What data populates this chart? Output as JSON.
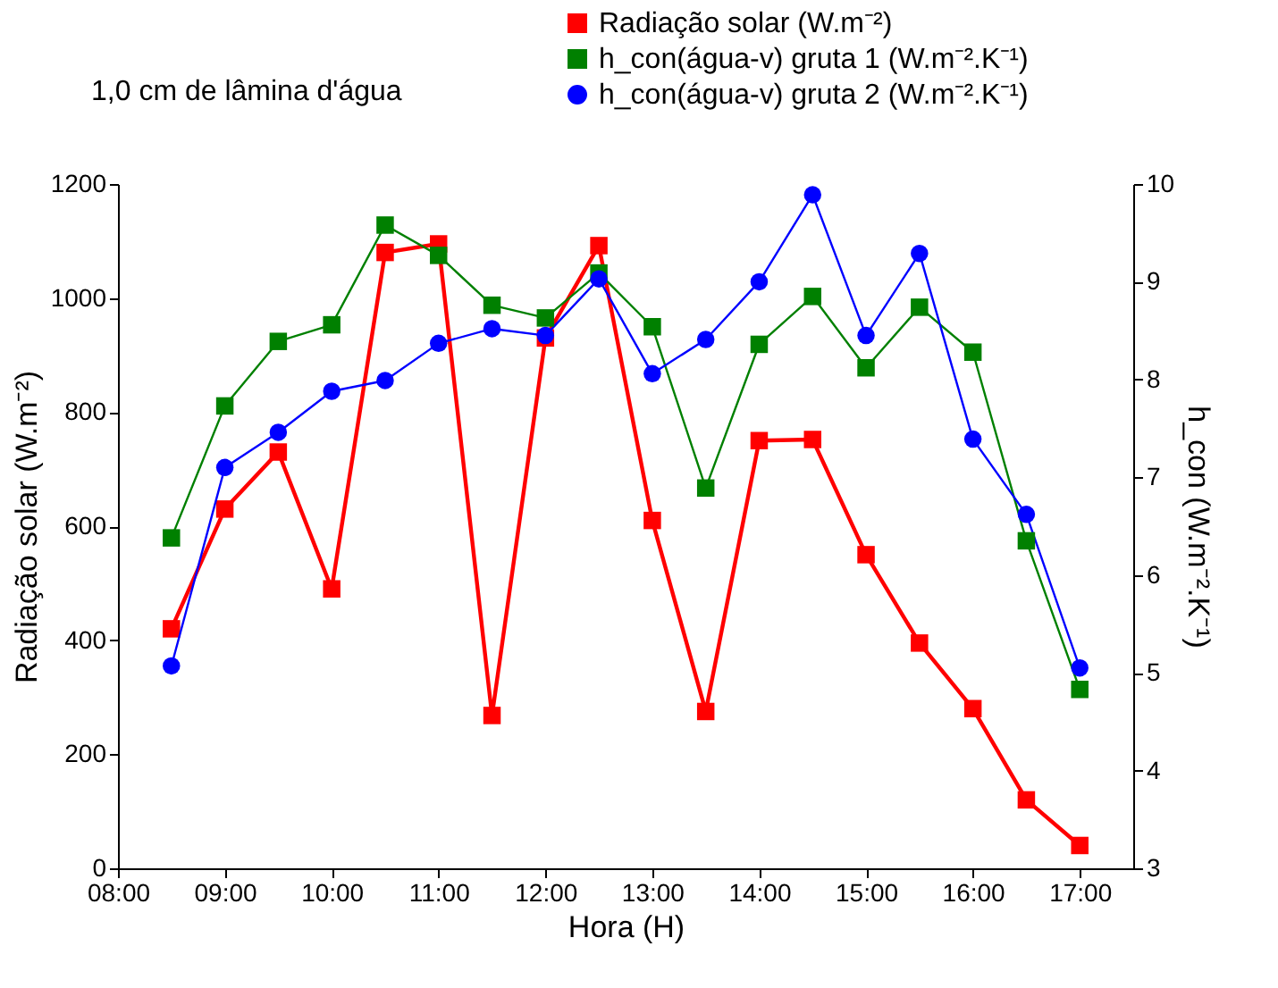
{
  "chart_data": {
    "type": "line",
    "title": "1,0 cm de lâmina d'água",
    "xlabel": "Hora (H)",
    "ylabel": "Radiação solar (W.m⁻²)",
    "y2label": "h_con (W.m⁻².K⁻¹)",
    "x": [
      8.5,
      9,
      9.5,
      10,
      10.5,
      11,
      11.5,
      12,
      12.5,
      13,
      13.5,
      14,
      14.5,
      15,
      15.5,
      16,
      16.5,
      17
    ],
    "series": [
      {
        "name": "Radiação solar (W.m⁻²)",
        "color": "#ff0000",
        "marker": "square",
        "values": [
          420,
          630,
          730,
          490,
          1080,
          1095,
          268,
          930,
          1092,
          610,
          275,
          750,
          752,
          550,
          395,
          280,
          120,
          40
        ]
      },
      {
        "name": "h_con(água-v) gruta 1 (W.m⁻².K⁻¹)",
        "color": "#008000",
        "marker": "square",
        "axis": "y2",
        "values": [
          6.38,
          7.73,
          8.39,
          8.56,
          9.58,
          9.27,
          8.76,
          8.63,
          9.09,
          8.54,
          6.89,
          8.36,
          8.85,
          8.12,
          8.74,
          8.28,
          6.35,
          4.83
        ]
      },
      {
        "name": "h_con(água-v) gruta 2 (W.m⁻².K⁻¹)",
        "color": "#0000ff",
        "marker": "circle",
        "axis": "y2",
        "values": [
          5.07,
          7.1,
          7.46,
          7.88,
          7.99,
          8.37,
          8.52,
          8.45,
          9.03,
          8.06,
          8.41,
          9.0,
          9.89,
          8.45,
          9.29,
          7.39,
          6.62,
          5.05
        ]
      }
    ],
    "xlim": [
      8,
      17.5
    ],
    "xticks": [
      {
        "value": 8,
        "label": "08:00"
      },
      {
        "value": 9,
        "label": "09:00"
      },
      {
        "value": 10,
        "label": "10:00"
      },
      {
        "value": 11,
        "label": "11:00"
      },
      {
        "value": 12,
        "label": "12:00"
      },
      {
        "value": 13,
        "label": "13:00"
      },
      {
        "value": 14,
        "label": "14:00"
      },
      {
        "value": 15,
        "label": "15:00"
      },
      {
        "value": 16,
        "label": "16:00"
      },
      {
        "value": 17,
        "label": "17:00"
      }
    ],
    "ylim": [
      0,
      1200
    ],
    "yticks": [
      0,
      200,
      400,
      600,
      800,
      1000,
      1200
    ],
    "y2lim": [
      3,
      10
    ],
    "y2ticks": [
      3,
      4,
      5,
      6,
      7,
      8,
      9,
      10
    ],
    "grid": false,
    "legend": "top right"
  }
}
